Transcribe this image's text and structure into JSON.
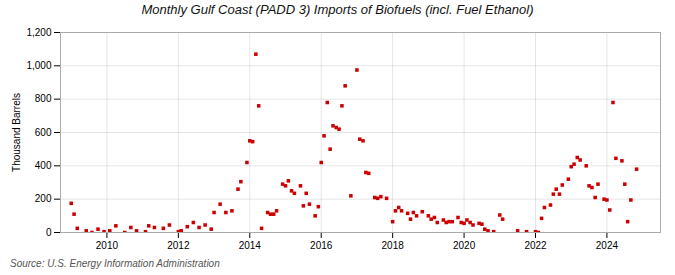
{
  "chart_data": {
    "type": "scatter",
    "title": "Monthly Gulf Coast (PADD 3) Imports of Biofuels (incl. Fuel Ethanol)",
    "ylabel": "Thousand Barrels",
    "annotations": [
      "Source: U.S. Energy Information Administration"
    ],
    "color": "#cc0000",
    "marker": "square",
    "grid": true,
    "xlim": [
      2008.7,
      2025.5
    ],
    "ylim": [
      0,
      1200
    ],
    "xticks": [
      2010,
      2012,
      2014,
      2016,
      2018,
      2020,
      2022,
      2024
    ],
    "yticks": [
      0,
      200,
      400,
      600,
      800,
      {
        "value": 1000,
        "label": "1,000"
      },
      {
        "value": 1200,
        "label": "1,200"
      }
    ],
    "x": [
      2009.0,
      2009.08,
      2009.17,
      2009.42,
      2009.58,
      2009.75,
      2009.92,
      2010.08,
      2010.25,
      2010.5,
      2010.67,
      2010.83,
      2011.08,
      2011.17,
      2011.33,
      2011.58,
      2011.75,
      2012.0,
      2012.08,
      2012.25,
      2012.42,
      2012.58,
      2012.75,
      2012.92,
      2013.0,
      2013.17,
      2013.33,
      2013.5,
      2013.67,
      2013.75,
      2013.92,
      2014.0,
      2014.08,
      2014.17,
      2014.25,
      2014.33,
      2014.5,
      2014.58,
      2014.67,
      2014.75,
      2014.92,
      2015.0,
      2015.08,
      2015.17,
      2015.25,
      2015.42,
      2015.5,
      2015.58,
      2015.67,
      2015.83,
      2015.92,
      2016.0,
      2016.08,
      2016.17,
      2016.25,
      2016.33,
      2016.42,
      2016.5,
      2016.58,
      2016.67,
      2016.83,
      2017.0,
      2017.08,
      2017.17,
      2017.25,
      2017.33,
      2017.5,
      2017.58,
      2017.67,
      2017.83,
      2018.0,
      2018.08,
      2018.17,
      2018.25,
      2018.42,
      2018.5,
      2018.58,
      2018.67,
      2018.83,
      2019.0,
      2019.08,
      2019.17,
      2019.25,
      2019.42,
      2019.5,
      2019.58,
      2019.67,
      2019.83,
      2019.92,
      2020.0,
      2020.08,
      2020.17,
      2020.25,
      2020.42,
      2020.5,
      2020.58,
      2020.67,
      2020.83,
      2021.0,
      2021.08,
      2021.5,
      2021.75,
      2022.0,
      2022.08,
      2022.17,
      2022.25,
      2022.42,
      2022.5,
      2022.58,
      2022.67,
      2022.75,
      2022.92,
      2023.0,
      2023.08,
      2023.17,
      2023.25,
      2023.42,
      2023.5,
      2023.58,
      2023.67,
      2023.75,
      2023.92,
      2024.0,
      2024.08,
      2024.17,
      2024.25,
      2024.42,
      2024.5,
      2024.58,
      2024.67,
      2024.83
    ],
    "values": [
      175,
      110,
      25,
      10,
      0,
      20,
      5,
      10,
      40,
      0,
      30,
      10,
      5,
      40,
      30,
      25,
      45,
      5,
      10,
      35,
      60,
      30,
      45,
      20,
      120,
      170,
      120,
      130,
      260,
      305,
      420,
      550,
      545,
      1070,
      760,
      25,
      120,
      110,
      110,
      130,
      290,
      280,
      310,
      250,
      235,
      280,
      160,
      235,
      170,
      100,
      155,
      420,
      580,
      780,
      500,
      640,
      630,
      620,
      760,
      880,
      220,
      975,
      560,
      550,
      360,
      355,
      210,
      205,
      215,
      205,
      65,
      130,
      150,
      130,
      115,
      80,
      120,
      100,
      125,
      100,
      80,
      90,
      60,
      75,
      60,
      65,
      65,
      90,
      60,
      55,
      75,
      60,
      45,
      55,
      50,
      20,
      10,
      5,
      105,
      80,
      10,
      5,
      5,
      0,
      85,
      150,
      165,
      230,
      260,
      230,
      285,
      320,
      395,
      410,
      450,
      435,
      400,
      280,
      270,
      210,
      290,
      200,
      195,
      135,
      780,
      445,
      430,
      290,
      65,
      195,
      380
    ]
  }
}
